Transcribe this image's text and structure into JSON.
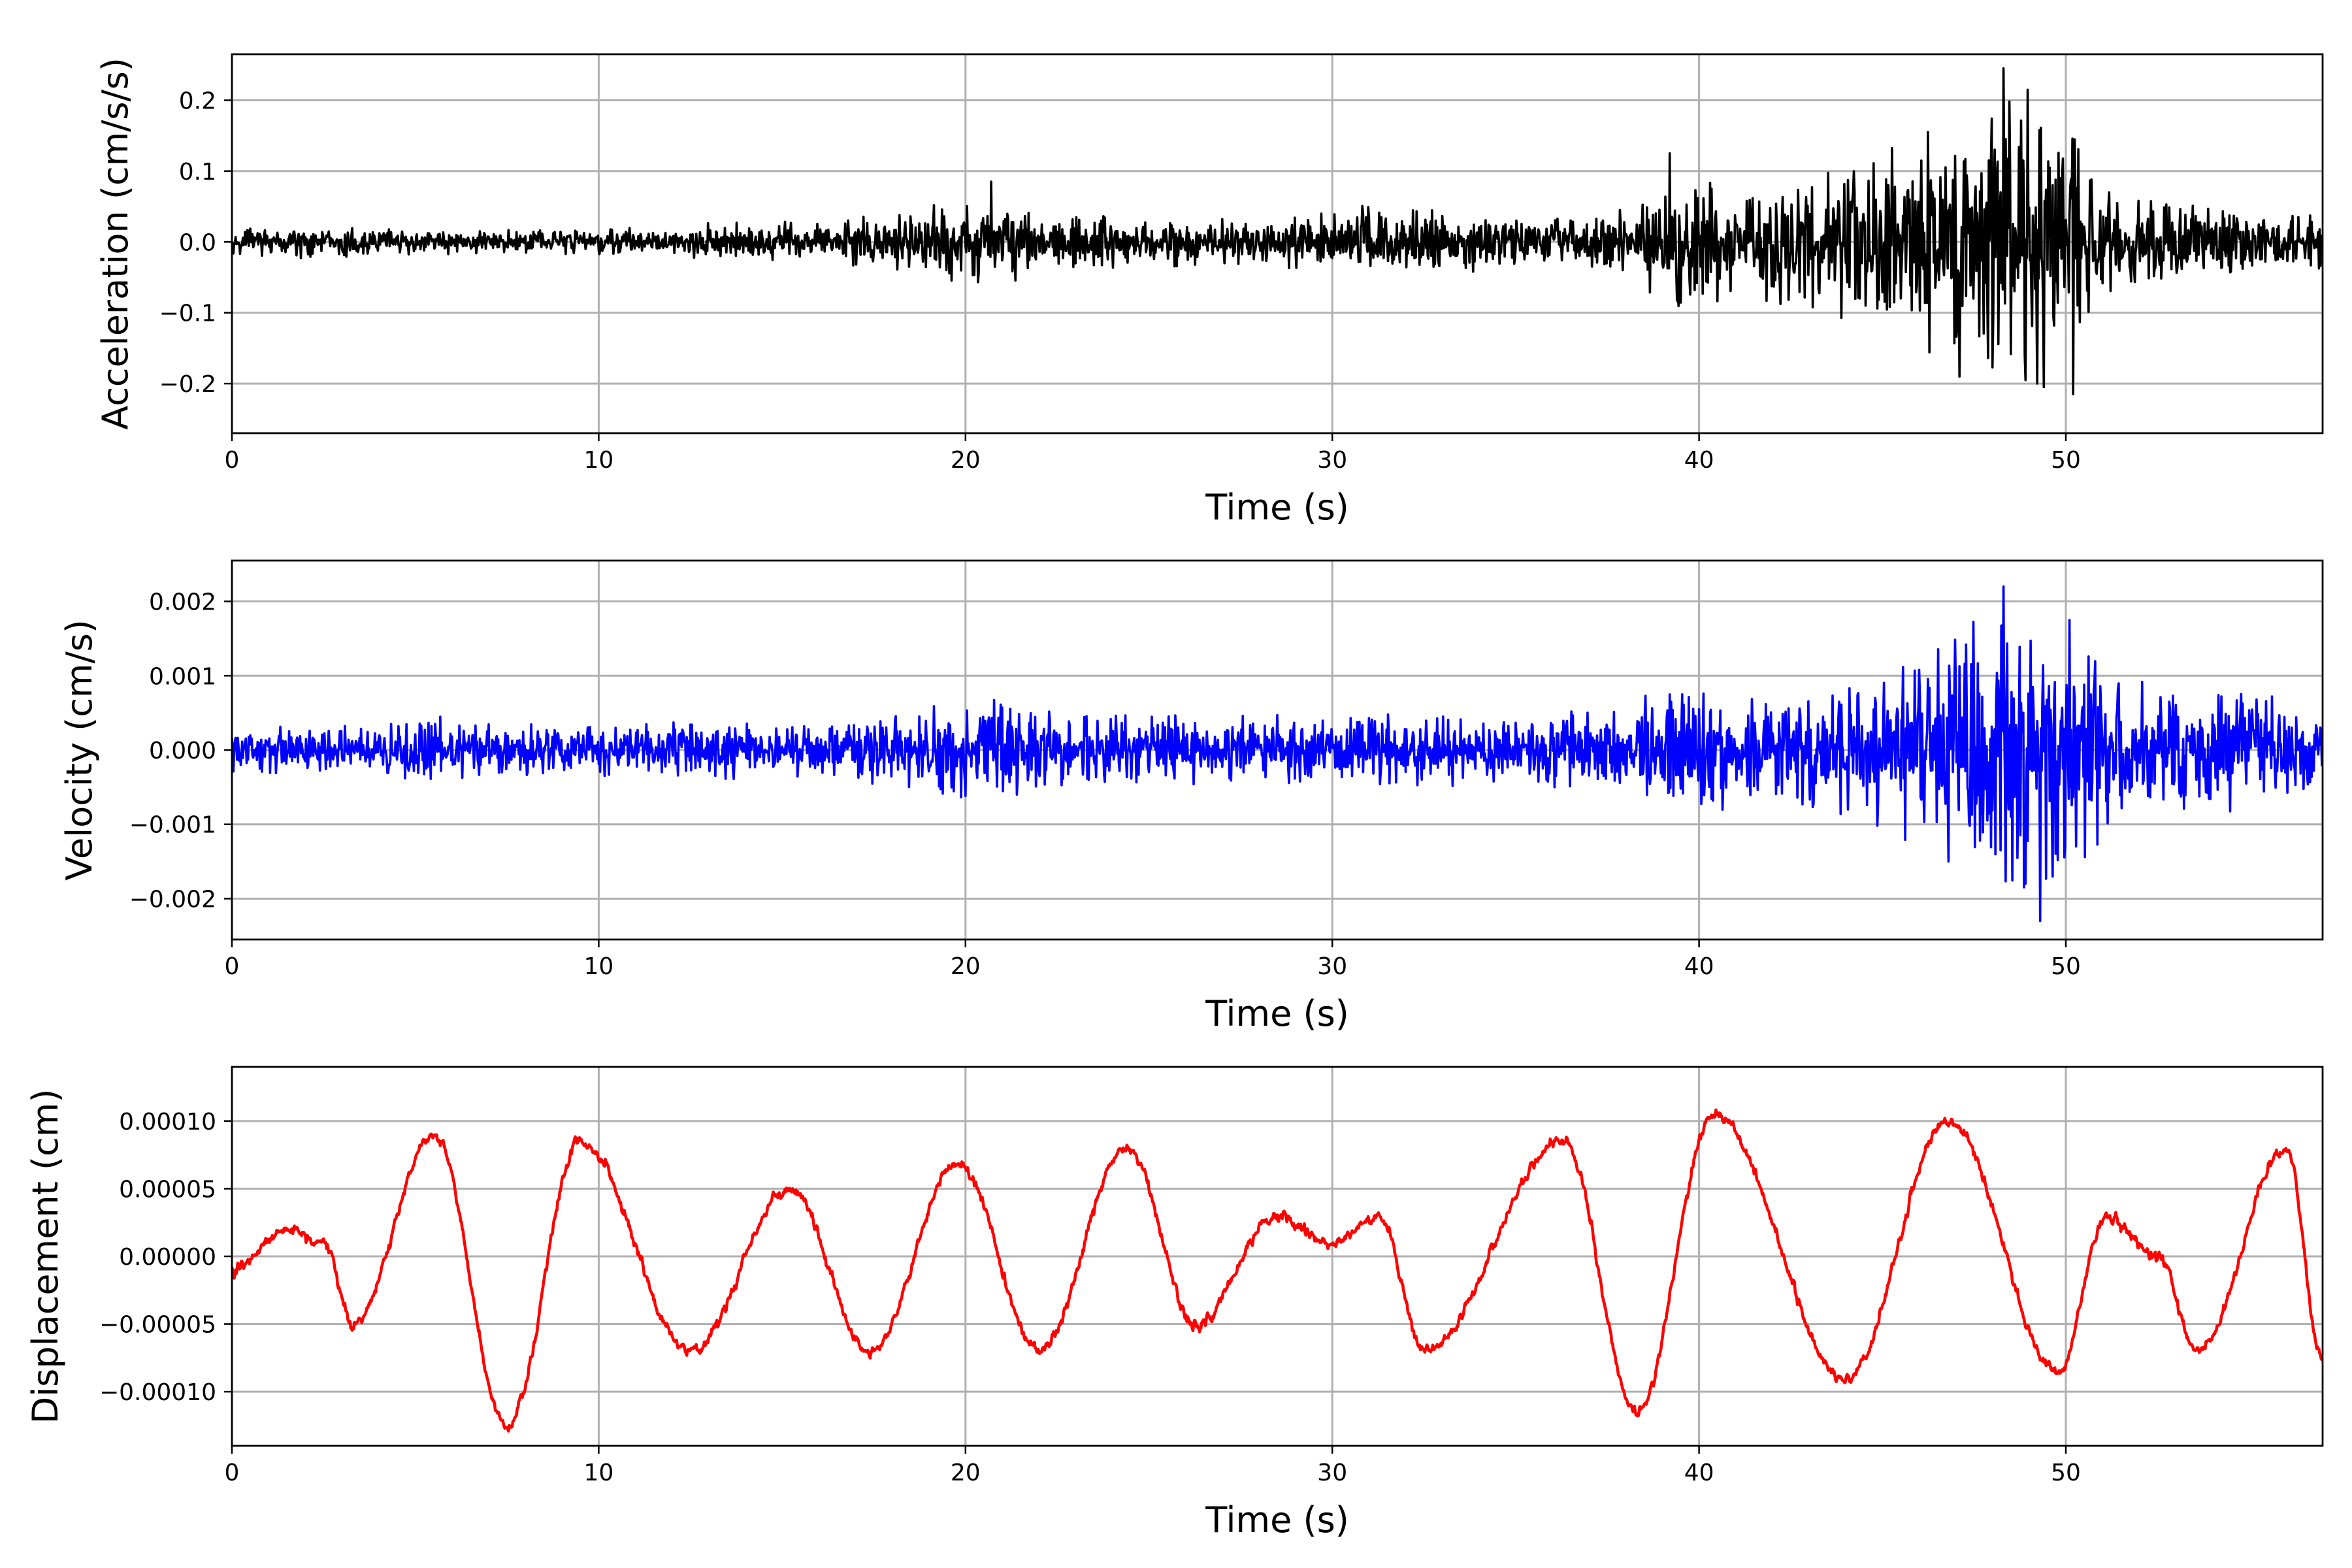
{
  "chart_data": [
    {
      "type": "line",
      "color": "#000000",
      "xlabel": "Time (s)",
      "ylabel": "Acceleration (cm/s/s)",
      "xlim": [
        0,
        57
      ],
      "ylim": [
        -0.27,
        0.265
      ],
      "xticks": [
        0,
        10,
        20,
        30,
        40,
        50
      ],
      "xtick_labels": [
        "0",
        "10",
        "20",
        "30",
        "40",
        "50"
      ],
      "yticks": [
        0.2,
        0.1,
        0.0,
        -0.1,
        -0.2
      ],
      "ytick_labels": [
        "0.2",
        "0.1",
        "0.0",
        "−0.1",
        "−0.2"
      ],
      "grid": true,
      "series": [
        {
          "signal": "broadband-noise",
          "sample_interval_s": 0.02,
          "envelope": {
            "t": [
              0,
              2,
              5,
              8,
              12,
              14,
              16,
              18.5,
              20.7,
              22,
              25,
              28,
              31,
              36,
              38,
              39.2,
              41,
              43,
              45,
              47,
              48.3,
              49.3,
              50.2,
              51,
              53,
              55,
              57
            ],
            "amp": [
              0.015,
              0.02,
              0.015,
              0.015,
              0.018,
              0.028,
              0.022,
              0.04,
              0.06,
              0.035,
              0.03,
              0.03,
              0.045,
              0.03,
              0.04,
              0.08,
              0.07,
              0.08,
              0.11,
              0.15,
              0.2,
              0.18,
              0.16,
              0.07,
              0.05,
              0.04,
              0.035
            ]
          },
          "peaks": [
            {
              "t": 48.3,
              "value": 0.245
            },
            {
              "t": 50.2,
              "value": -0.215
            },
            {
              "t": 49.4,
              "value": -0.205
            },
            {
              "t": 47.1,
              "value": -0.19
            },
            {
              "t": 39.2,
              "value": 0.125
            },
            {
              "t": 20.7,
              "value": 0.085
            }
          ]
        }
      ]
    },
    {
      "type": "line",
      "color": "#0000ff",
      "xlabel": "Time (s)",
      "ylabel": "Velocity (cm/s)",
      "xlim": [
        0,
        57
      ],
      "ylim": [
        -0.00255,
        0.00255
      ],
      "xticks": [
        0,
        10,
        20,
        30,
        40,
        50
      ],
      "xtick_labels": [
        "0",
        "10",
        "20",
        "30",
        "40",
        "50"
      ],
      "yticks": [
        0.002,
        0.001,
        0.0,
        -0.001,
        -0.002
      ],
      "ytick_labels": [
        "0.002",
        "0.001",
        "0.000",
        "−0.001",
        "−0.002"
      ],
      "grid": true,
      "series": [
        {
          "signal": "broadband-noise",
          "sample_interval_s": 0.02,
          "envelope": {
            "t": [
              0,
              3,
              5.3,
              7,
              10,
              13,
              16,
              18,
              20.7,
              23,
              26,
              28,
              31,
              35,
              38,
              39.2,
              42,
              45,
              48.3,
              49.5,
              50.2,
              52,
              55,
              57
            ],
            "amp": [
              0.00025,
              0.0003,
              0.00045,
              0.0003,
              0.0003,
              0.00035,
              0.0003,
              0.00045,
              0.0006,
              0.00045,
              0.0004,
              0.0004,
              0.00045,
              0.0004,
              0.0005,
              0.0008,
              0.0006,
              0.0009,
              0.0017,
              0.0015,
              0.0014,
              0.0008,
              0.0007,
              0.0006
            ]
          },
          "peaks": [
            {
              "t": 48.3,
              "value": 0.0022
            },
            {
              "t": 49.3,
              "value": -0.0023
            },
            {
              "t": 50.1,
              "value": 0.00175
            },
            {
              "t": 48.9,
              "value": -0.0018
            },
            {
              "t": 46.8,
              "value": -0.0015
            }
          ]
        }
      ]
    },
    {
      "type": "line",
      "color": "#ff0000",
      "xlabel": "Time (s)",
      "ylabel": "Displacement (cm)",
      "xlim": [
        0,
        57
      ],
      "ylim": [
        -0.00014,
        0.00014
      ],
      "xticks": [
        0,
        10,
        20,
        30,
        40,
        50
      ],
      "xtick_labels": [
        "0",
        "10",
        "20",
        "30",
        "40",
        "50"
      ],
      "yticks": [
        0.0001,
        5e-05,
        0.0,
        -5e-05,
        -0.0001
      ],
      "ytick_labels": [
        "0.00010",
        "0.00005",
        "0.00000",
        "−0.00005",
        "−0.00010"
      ],
      "grid": true,
      "series": [
        {
          "signal": "smooth-with-jitter",
          "sample_interval_s": 0.02,
          "x": [
            0,
            1.5,
            2.5,
            3.3,
            5.5,
            7.5,
            9.5,
            12.5,
            15.2,
            17.4,
            19.8,
            22,
            24.4,
            26.3,
            28.5,
            30,
            31.3,
            32.5,
            36.3,
            38.3,
            40.4,
            44,
            46.8,
            49.8,
            51.1,
            52.5,
            53.6,
            56,
            57
          ],
          "y": [
            -1e-05,
            2e-05,
            1e-05,
            -5e-05,
            9e-05,
            -0.000125,
            8.5e-05,
            -7e-05,
            5e-05,
            -7e-05,
            7e-05,
            -7e-05,
            8e-05,
            -5e-05,
            3e-05,
            1e-05,
            3e-05,
            -7e-05,
            8.5e-05,
            -0.000115,
            0.000105,
            -9e-05,
            0.0001,
            -8.5e-05,
            3e-05,
            0.0,
            -7e-05,
            8e-05,
            -7.5e-05
          ],
          "jitter_amp": 4e-06
        }
      ]
    }
  ]
}
